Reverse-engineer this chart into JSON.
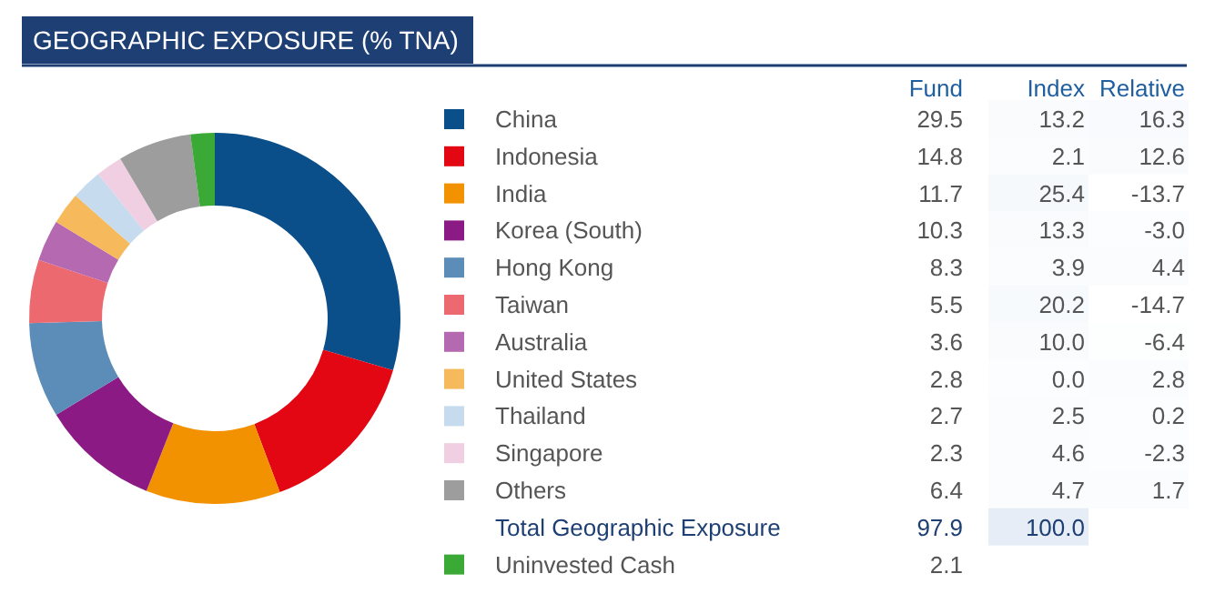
{
  "chart_data": [
    {
      "type": "donut",
      "title": "GEOGRAPHIC EXPOSURE (% TNA)",
      "categories": [
        "China",
        "Indonesia",
        "India",
        "Korea (South)",
        "Hong Kong",
        "Taiwan",
        "Australia",
        "United States",
        "Thailand",
        "Singapore",
        "Others",
        "Uninvested Cash"
      ],
      "series": [
        {
          "name": "Fund",
          "values": [
            29.5,
            14.8,
            11.7,
            10.3,
            8.3,
            5.5,
            3.6,
            2.8,
            2.7,
            2.3,
            6.4,
            2.1
          ]
        }
      ],
      "colors": [
        "#0b4f8a",
        "#e30613",
        "#f39200",
        "#8b1a85",
        "#5b8db8",
        "#ec6a6f",
        "#b569b0",
        "#f6b95c",
        "#c6dcee",
        "#f0cfe3",
        "#9d9d9d",
        "#3aa935"
      ],
      "data_labels": true,
      "legend": "right",
      "annotations": [
        "Total Geographic Exposure",
        "97.9"
      ]
    },
    {
      "type": "heatmap",
      "categories": [
        "Index",
        "Relative"
      ],
      "y_categories": [
        null,
        null,
        null,
        null,
        null,
        null,
        null,
        null,
        null,
        null,
        null,
        null
      ],
      "cells": [
        [
          13.2,
          16.3
        ],
        [
          2.1,
          12.6
        ],
        [
          25.4,
          -13.7
        ],
        [
          13.3,
          -3.0
        ],
        [
          3.9,
          4.4
        ],
        [
          20.2,
          -14.7
        ],
        [
          10.0,
          -6.4
        ],
        [
          0.0,
          2.8
        ],
        [
          2.5,
          0.2
        ],
        [
          4.6,
          -2.3
        ],
        [
          4.7,
          1.7
        ],
        [
          100.0,
          null
        ]
      ],
      "cell_labels": [
        [
          "13.2",
          "16.3"
        ],
        [
          "2.1",
          "12.6"
        ],
        [
          "25.4",
          "-13.7"
        ],
        [
          "13.3",
          "-3.0"
        ],
        [
          "3.9",
          "4.4"
        ],
        [
          "20.2",
          "-14.7"
        ],
        [
          "10.0",
          "-6.4"
        ],
        [
          "0.0",
          "2.8"
        ],
        [
          "2.5",
          "0.2"
        ],
        [
          "4.6",
          "-2.3"
        ],
        [
          "4.7",
          "1.7"
        ],
        [
          "100.0",
          null
        ]
      ]
    }
  ]
}
